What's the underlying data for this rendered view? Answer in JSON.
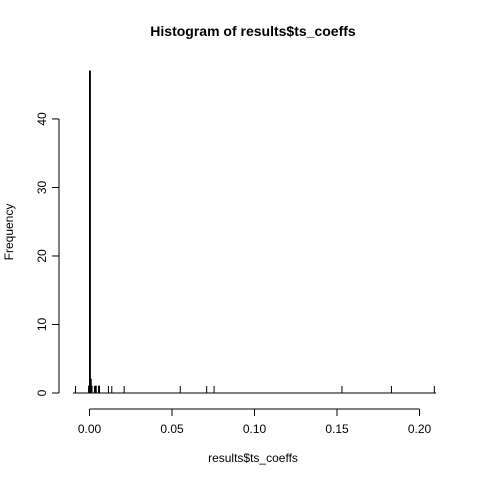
{
  "chart_data": {
    "type": "bar",
    "title": "Histogram of results$ts_coeffs",
    "xlabel": "results$ts_coeffs",
    "ylabel": "Frequency",
    "xlim": [
      -0.01,
      0.21
    ],
    "ylim": [
      0,
      47
    ],
    "x_ticks": [
      0.0,
      0.05,
      0.1,
      0.15,
      0.2
    ],
    "x_tick_labels": [
      "0.00",
      "0.05",
      "0.10",
      "0.15",
      "0.20"
    ],
    "y_ticks": [
      0,
      10,
      20,
      30,
      40
    ],
    "y_tick_labels": [
      "0",
      "10",
      "20",
      "30",
      "40"
    ],
    "bin_width": 0.0005,
    "bins": [
      {
        "x": -0.0005,
        "count": 1
      },
      {
        "x": 0.0,
        "count": 47
      },
      {
        "x": 0.0005,
        "count": 2
      },
      {
        "x": 0.001,
        "count": 1
      },
      {
        "x": 0.0035,
        "count": 1
      },
      {
        "x": 0.0055,
        "count": 1
      }
    ],
    "rug": [
      -0.0085,
      -0.0005,
      0.0,
      0.0015,
      0.003,
      0.004,
      0.006,
      0.0115,
      0.0135,
      0.021,
      0.055,
      0.071,
      0.0755,
      0.153,
      0.183,
      0.209
    ],
    "grid": false,
    "legend": "none"
  }
}
